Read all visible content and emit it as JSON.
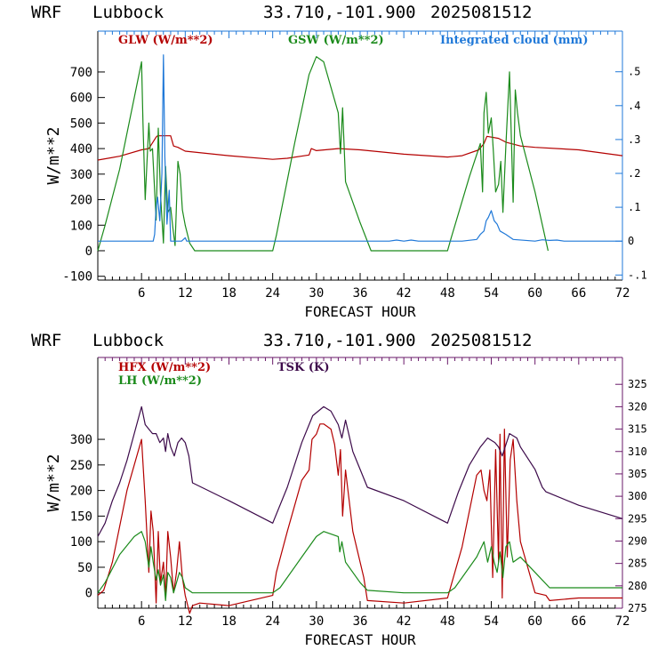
{
  "colors": {
    "red": "#b40000",
    "green": "#1a8a1a",
    "blue": "#1f78d8",
    "purple": "#3c0a4a",
    "axis_blue": "#1f78d8",
    "axis_purple": "#6a1a6a"
  },
  "chart_data": [
    {
      "type": "line",
      "header": {
        "model": "WRF",
        "location": "Lubbock",
        "coords": "33.710,-101.900",
        "init": "2025081512"
      },
      "xlabel": "FORECAST HOUR",
      "ylabel": "W/m**2",
      "xlim": [
        0,
        72
      ],
      "ylim": [
        -115,
        860
      ],
      "xticks": [
        "6",
        "12",
        "18",
        "24",
        "30",
        "36",
        "42",
        "48",
        "54",
        "60",
        "66",
        "72"
      ],
      "yticks": [
        "-100",
        "0",
        "100",
        "200",
        "300",
        "400",
        "500",
        "600",
        "700"
      ],
      "right_axis": {
        "label": "",
        "lim": [
          -0.115,
          0.62
        ],
        "ticks": [
          ".5",
          ".4",
          ".3",
          ".2",
          ".1",
          "0",
          "-.1"
        ],
        "tick_values": [
          0.5,
          0.4,
          0.3,
          0.2,
          0.1,
          0,
          -0.1
        ]
      },
      "legend": [
        {
          "name": "GLW (W/m**2)",
          "color": "#b40000"
        },
        {
          "name": "GSW (W/m**2)",
          "color": "#1a8a1a"
        },
        {
          "name": "Integrated cloud (mm)",
          "color": "#1f78d8"
        }
      ],
      "series": [
        {
          "name": "GLW (W/m**2)",
          "axis": "left",
          "color": "#b40000",
          "x": [
            0,
            3,
            6,
            7,
            8,
            8.2,
            10,
            10.4,
            11,
            12,
            18,
            24,
            26,
            29,
            29.3,
            30,
            33,
            36,
            42,
            48,
            50,
            52.3,
            53,
            53.4,
            55,
            56,
            58,
            60,
            66,
            72
          ],
          "y": [
            355,
            370,
            395,
            400,
            445,
            450,
            450,
            410,
            405,
            390,
            372,
            358,
            362,
            375,
            400,
            392,
            400,
            395,
            378,
            367,
            372,
            395,
            420,
            448,
            440,
            425,
            410,
            405,
            395,
            372
          ]
        },
        {
          "name": "GSW (W/m**2)",
          "axis": "left",
          "color": "#1a8a1a",
          "x": [
            0,
            1,
            3,
            5,
            6,
            6.2,
            6.5,
            7,
            7.2,
            7.5,
            8,
            8.3,
            8.6,
            9,
            9.3,
            9.6,
            10,
            10.3,
            10.6,
            11,
            11.3,
            11.6,
            12,
            12.6,
            13.3,
            24,
            24.5,
            27,
            29,
            30,
            31,
            32,
            33,
            33.3,
            33.6,
            34,
            36,
            37.5,
            48,
            48.5,
            51,
            52.5,
            52.8,
            53,
            53.3,
            53.6,
            54,
            54.3,
            54.6,
            55,
            55.3,
            55.6,
            56,
            56.5,
            57,
            57.3,
            57.6,
            58,
            60,
            61.8
          ],
          "y": [
            0,
            100,
            320,
            600,
            740,
            500,
            200,
            500,
            390,
            400,
            120,
            480,
            220,
            30,
            330,
            150,
            170,
            90,
            20,
            350,
            300,
            160,
            100,
            30,
            0,
            0,
            60,
            420,
            690,
            760,
            740,
            640,
            540,
            380,
            560,
            270,
            110,
            0,
            0,
            50,
            290,
            420,
            230,
            540,
            620,
            460,
            520,
            380,
            230,
            260,
            350,
            150,
            410,
            700,
            190,
            630,
            540,
            450,
            230,
            0
          ]
        },
        {
          "name": "Integrated cloud (mm)",
          "axis": "right",
          "color": "#1f78d8",
          "x": [
            0,
            7.6,
            7.8,
            8,
            8.2,
            8.5,
            8.8,
            9.0,
            9.2,
            9.5,
            9.8,
            10,
            10.5,
            11.5,
            12,
            12.2,
            12.5,
            30,
            40,
            41,
            42,
            43,
            44,
            45,
            50,
            52,
            52.5,
            53,
            53.3,
            53.6,
            54,
            54.4,
            54.8,
            55.2,
            56,
            57,
            60,
            61,
            62,
            63,
            64,
            72
          ],
          "y": [
            0,
            0,
            0.02,
            0.1,
            0.13,
            0.06,
            0.2,
            0.55,
            0.25,
            0.05,
            0.15,
            0,
            0,
            0,
            0.01,
            0,
            0,
            0,
            0,
            0.003,
            0,
            0.003,
            0,
            0,
            0,
            0.005,
            0.02,
            0.03,
            0.06,
            0.07,
            0.09,
            0.06,
            0.05,
            0.03,
            0.02,
            0.005,
            0,
            0.004,
            0.002,
            0.003,
            0,
            0
          ]
        }
      ]
    },
    {
      "type": "line",
      "header": {
        "model": "WRF",
        "location": "Lubbock",
        "coords": "33.710,-101.900",
        "init": "2025081512"
      },
      "xlabel": "FORECAST HOUR",
      "ylabel": "W/m**2",
      "xlim": [
        0,
        72
      ],
      "ylim": [
        -30,
        460
      ],
      "xticks": [
        "6",
        "12",
        "18",
        "24",
        "30",
        "36",
        "42",
        "48",
        "54",
        "60",
        "66",
        "72"
      ],
      "yticks": [
        "0",
        "50",
        "100",
        "150",
        "200",
        "250",
        "300"
      ],
      "right_axis": {
        "label": "",
        "lim": [
          275,
          331
        ],
        "ticks": [
          "325",
          "320",
          "315",
          "310",
          "305",
          "300",
          "295",
          "290",
          "285",
          "280",
          "275"
        ],
        "tick_values": [
          325,
          320,
          315,
          310,
          305,
          300,
          295,
          290,
          285,
          280,
          275
        ]
      },
      "legend": [
        {
          "name": "HFX (W/m**2)",
          "color": "#b40000"
        },
        {
          "name": "LH  (W/m**2)",
          "color": "#1a8a1a"
        },
        {
          "name": "TSK (K)",
          "color": "#3c0a4a"
        }
      ],
      "series": [
        {
          "name": "HFX (W/m**2)",
          "axis": "left",
          "color": "#b40000",
          "x": [
            0,
            0.8,
            2,
            4,
            6,
            6.5,
            7,
            7.3,
            7.6,
            8,
            8.3,
            8.6,
            9,
            9.3,
            9.6,
            10,
            10.4,
            10.8,
            11.2,
            11.6,
            12,
            12.6,
            13,
            14,
            18,
            24,
            24.5,
            26,
            28,
            29,
            29.4,
            30,
            30.5,
            31,
            32,
            32.5,
            33,
            33.3,
            33.6,
            34,
            35,
            36.5,
            37,
            42,
            48,
            48.5,
            50,
            52,
            52.6,
            53,
            53.4,
            53.8,
            54.2,
            54.6,
            55,
            55.2,
            55.5,
            55.8,
            56.2,
            56.6,
            57,
            57.5,
            58,
            60,
            61.5,
            62,
            66,
            72
          ],
          "y": [
            -5,
            5,
            60,
            200,
            300,
            180,
            40,
            160,
            120,
            -20,
            120,
            20,
            60,
            -10,
            120,
            70,
            0,
            40,
            100,
            30,
            -5,
            -40,
            -25,
            -20,
            -25,
            -5,
            40,
            120,
            220,
            240,
            300,
            310,
            330,
            330,
            320,
            290,
            230,
            280,
            150,
            240,
            120,
            30,
            -15,
            -20,
            -10,
            15,
            90,
            230,
            240,
            200,
            180,
            240,
            30,
            280,
            60,
            310,
            -10,
            320,
            70,
            260,
            300,
            180,
            100,
            0,
            -5,
            -15,
            -10,
            -10
          ]
        },
        {
          "name": "LH  (W/m**2)",
          "axis": "left",
          "color": "#1a8a1a",
          "x": [
            0,
            1,
            3,
            5,
            6,
            6.5,
            7,
            7.3,
            7.6,
            8,
            8.3,
            8.6,
            9,
            9.3,
            9.6,
            10,
            10.4,
            10.8,
            11.2,
            11.6,
            12,
            13,
            18,
            24,
            25,
            28,
            30,
            31,
            33,
            33.2,
            33.5,
            34,
            36,
            37,
            42,
            48,
            49,
            52,
            53,
            53.5,
            54,
            54.4,
            54.8,
            55.2,
            55.6,
            56,
            56.5,
            57,
            58,
            60,
            62,
            66,
            72
          ],
          "y": [
            0,
            20,
            75,
            110,
            120,
            100,
            50,
            90,
            60,
            25,
            45,
            15,
            35,
            -15,
            40,
            30,
            0,
            20,
            40,
            30,
            10,
            0,
            0,
            0,
            10,
            70,
            110,
            120,
            110,
            80,
            100,
            60,
            20,
            5,
            0,
            0,
            10,
            70,
            100,
            60,
            90,
            60,
            40,
            80,
            30,
            90,
            100,
            60,
            70,
            40,
            10,
            10,
            10
          ]
        },
        {
          "name": "TSK (K)",
          "axis": "right",
          "color": "#3c0a4a",
          "x": [
            0,
            1,
            2,
            3,
            4,
            5,
            6,
            6.5,
            7,
            7.5,
            8,
            8.5,
            9,
            9.3,
            9.6,
            10,
            10.5,
            11,
            11.5,
            12,
            12.5,
            13,
            18,
            24,
            26,
            28,
            29.5,
            31,
            32,
            33,
            33.5,
            34,
            35,
            36,
            37,
            42,
            48,
            49.5,
            51,
            52.5,
            53.5,
            54.5,
            55,
            55.5,
            56.5,
            57.5,
            58,
            60,
            61,
            61.5,
            66,
            72
          ],
          "y": [
            291,
            294,
            299,
            303,
            308,
            314,
            320,
            316,
            315,
            314,
            314,
            312,
            313,
            310,
            314,
            311,
            309,
            312,
            313,
            312,
            309,
            303,
            299,
            294,
            302,
            312,
            318,
            320,
            319,
            316,
            313,
            317,
            310,
            306,
            302,
            299,
            294,
            301,
            307,
            311,
            313,
            312,
            311,
            309,
            314,
            313,
            311,
            306,
            302,
            301,
            298,
            295
          ]
        }
      ]
    }
  ]
}
